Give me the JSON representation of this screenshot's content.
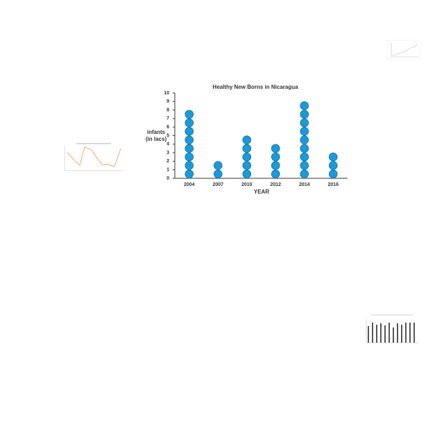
{
  "chart_data": {
    "type": "pictograph",
    "title": "Healthy New Borns in Nicaragua",
    "x_label": "YEAR",
    "y_label": [
      "infants",
      "(in lacs)"
    ],
    "categories": [
      "2004",
      "2007",
      "2010",
      "2012",
      "2014",
      "2016"
    ],
    "values": [
      8,
      2,
      5,
      4,
      9,
      3
    ],
    "color": "#1a9ad8",
    "ylim": [
      0,
      10
    ],
    "yticks": [
      0,
      1,
      2,
      3,
      4,
      5,
      6,
      7,
      8,
      9,
      10
    ]
  }
}
